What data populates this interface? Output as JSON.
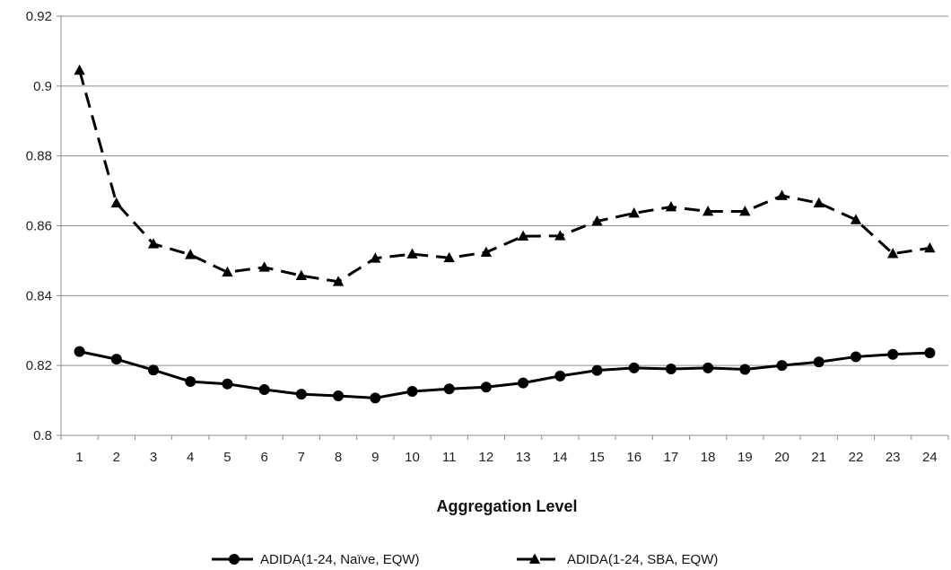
{
  "chart_data": {
    "type": "line",
    "xlabel": "Aggregation Level",
    "ylabel": "",
    "title": "",
    "ylim": [
      0.8,
      0.92
    ],
    "yticks": [
      "0.8",
      "0.82",
      "0.84",
      "0.86",
      "0.88",
      "0.9",
      "0.92"
    ],
    "x": [
      1,
      2,
      3,
      4,
      5,
      6,
      7,
      8,
      9,
      10,
      11,
      12,
      13,
      14,
      15,
      16,
      17,
      18,
      19,
      20,
      21,
      22,
      23,
      24
    ],
    "grid": "horizontal",
    "legend": "bottom",
    "series": [
      {
        "name": "ADIDA(1-24, Naïve, EQW)",
        "marker": "circle",
        "line": "solid",
        "color": "#000000",
        "values": [
          0.824,
          0.8218,
          0.8187,
          0.8154,
          0.8147,
          0.8131,
          0.8118,
          0.8113,
          0.8107,
          0.8126,
          0.8133,
          0.8138,
          0.815,
          0.817,
          0.8186,
          0.8193,
          0.819,
          0.8193,
          0.8189,
          0.82,
          0.821,
          0.8225,
          0.8232,
          0.8236
        ]
      },
      {
        "name": "ADIDA(1-24, SBA, EQW)",
        "marker": "triangle",
        "line": "dashed",
        "color": "#000000",
        "values": [
          0.9045,
          0.8665,
          0.8548,
          0.8517,
          0.8467,
          0.8481,
          0.8457,
          0.844,
          0.8507,
          0.8519,
          0.8508,
          0.8524,
          0.857,
          0.8571,
          0.8613,
          0.8636,
          0.8654,
          0.8641,
          0.8641,
          0.8686,
          0.8665,
          0.8617,
          0.852,
          0.8536
        ]
      }
    ]
  }
}
